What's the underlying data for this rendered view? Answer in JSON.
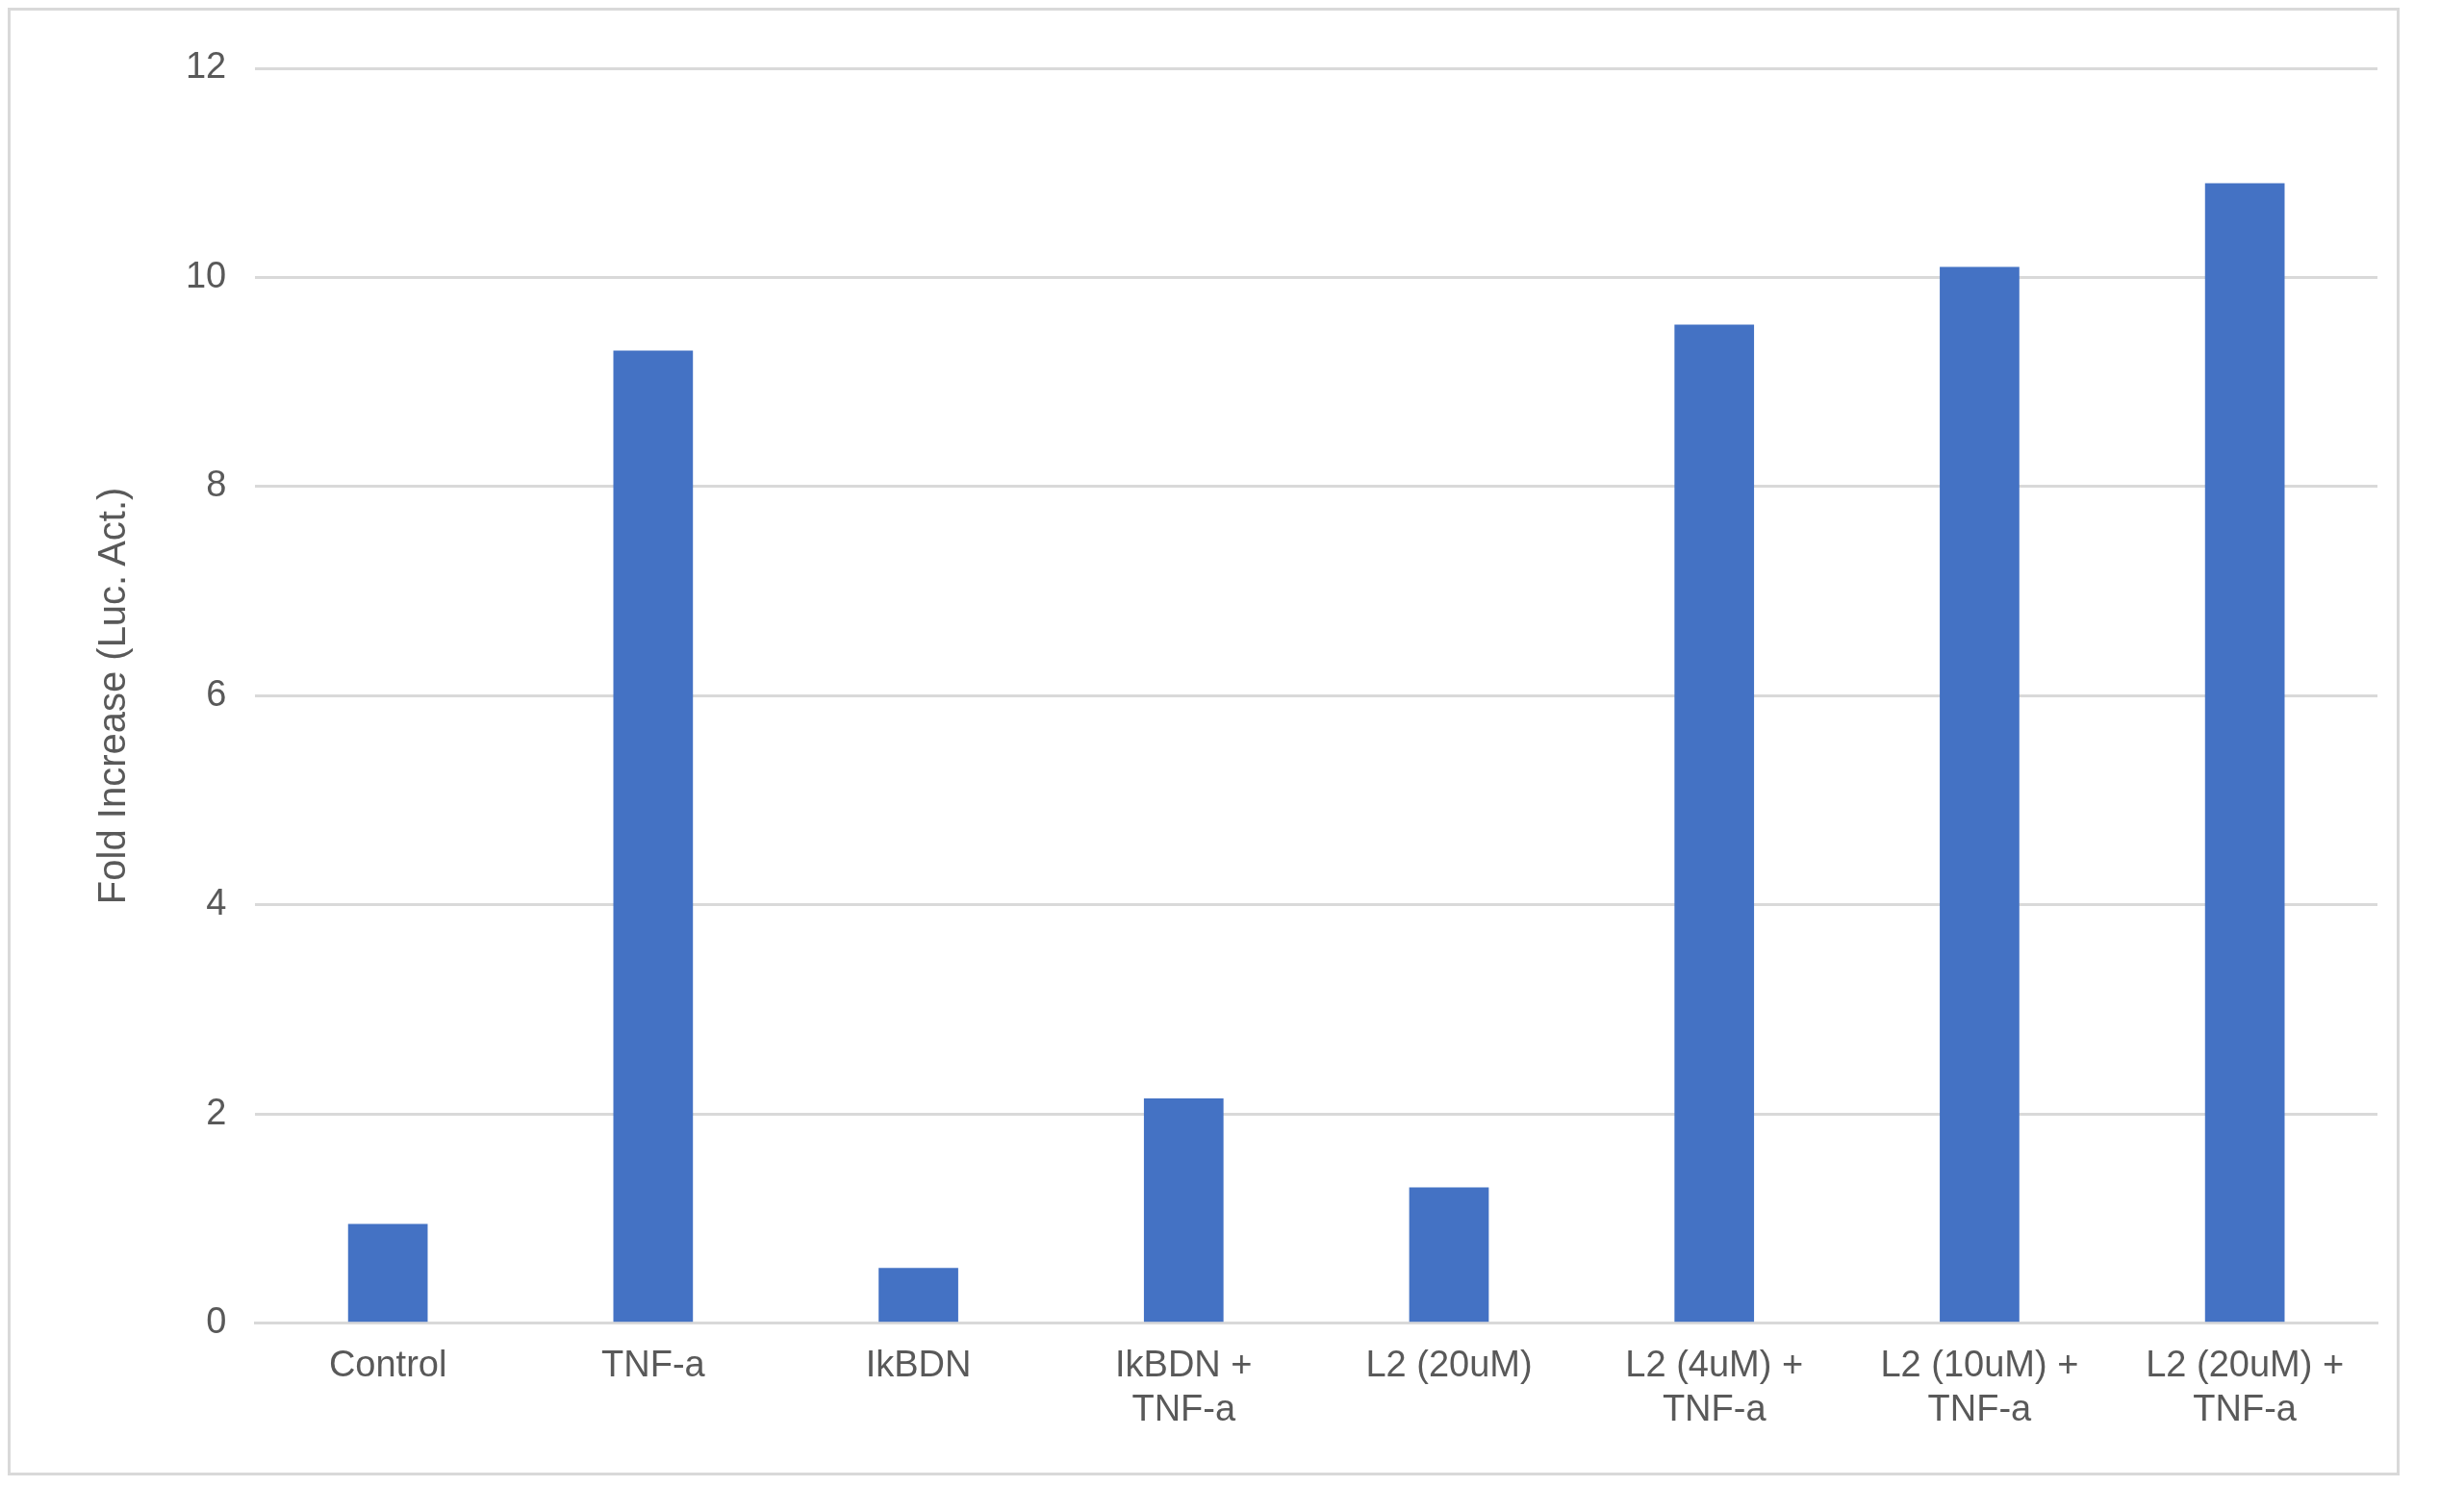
{
  "chart_data": {
    "type": "bar",
    "ylabel": "Fold Increase (Luc. Act.)",
    "categories": [
      "Control",
      "TNF-a",
      "IkBDN",
      "IkBDN + TNF-a",
      "L2 (20uM)",
      "L2 (4uM) + TNF-a",
      "L2 (10uM) + TNF-a",
      "L2 (20uM) + TNF-a"
    ],
    "values": [
      0.95,
      9.3,
      0.53,
      2.15,
      1.3,
      9.55,
      10.1,
      10.9
    ],
    "color": "#4472c4",
    "ylim": [
      0,
      12
    ],
    "yticks": [
      0,
      2,
      4,
      6,
      8,
      10,
      12
    ],
    "grid": "y"
  }
}
